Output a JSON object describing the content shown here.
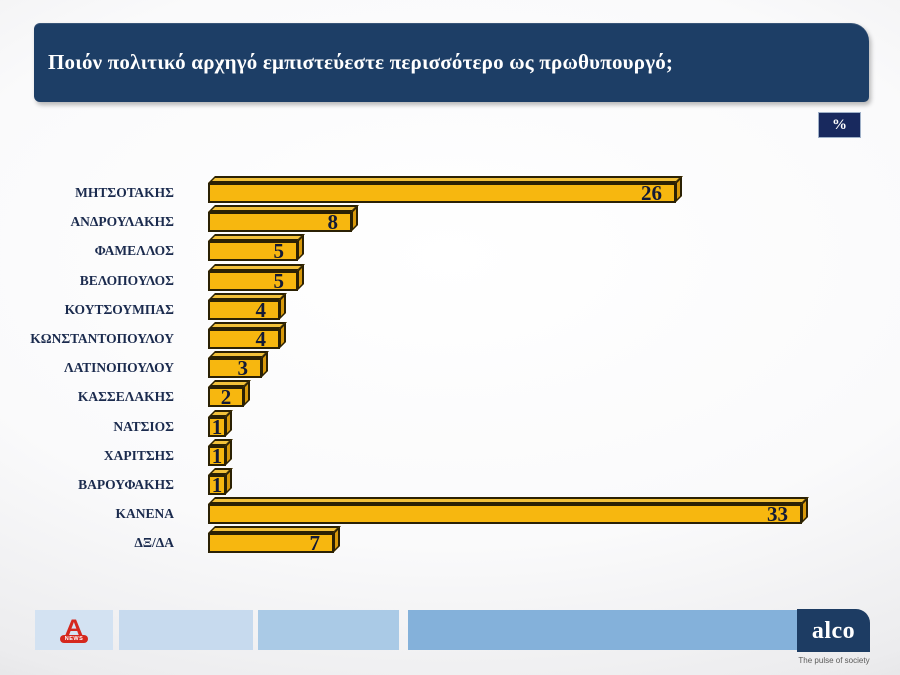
{
  "title": "Ποιόν πολιτικό αρχηγό εμπιστεύεστε περισσότερο ως πρωθυπουργό;",
  "unit_badge": "%",
  "chart_data": {
    "type": "bar",
    "orientation": "horizontal",
    "title": "Ποιόν πολιτικό αρχηγό εμπιστεύεστε περισσότερο ως πρωθυπουργό;",
    "unit": "%",
    "categories": [
      "ΜΗΤΣΟΤΑΚΗΣ",
      "ΑΝΔΡΟΥΛΑΚΗΣ",
      "ΦΑΜΕΛΛΟΣ",
      "ΒΕΛΟΠΟΥΛΟΣ",
      "ΚΟΥΤΣΟΥΜΠΑΣ",
      "ΚΩΝΣΤΑΝΤΟΠΟΥΛΟΥ",
      "ΛΑΤΙΝΟΠΟΥΛΟΥ",
      "ΚΑΣΣΕΛΑΚΗΣ",
      "ΝΑΤΣΙΟΣ",
      "ΧΑΡΙΤΣΗΣ",
      "ΒΑΡΟΥΦΑΚΗΣ",
      "ΚΑΝΕΝΑ",
      "ΔΞ/ΔΑ"
    ],
    "values": [
      26,
      8,
      5,
      5,
      4,
      4,
      3,
      2,
      1,
      1,
      1,
      33,
      7
    ],
    "xlim": [
      0,
      35
    ],
    "grid": false,
    "legend": false,
    "value_labels": "inside-end",
    "bar_style": "3d-gold"
  },
  "footer": {
    "alpha": {
      "letter": "A",
      "news": "NEWS"
    },
    "alco": {
      "logo": "alco",
      "tagline": "The pulse of society"
    }
  },
  "colors": {
    "title_bg": "#1D3E66",
    "title_text": "#FFFFFF",
    "badge_bg": "#18295E",
    "bar_front": "#F7B70F",
    "bar_top": "#F2C13A",
    "bar_side": "#D8990B",
    "bar_border": "#2B2104",
    "value_text": "#131A36",
    "label_text": "#1B2B4E",
    "alco_bg": "#1D3C63",
    "alpha_red": "#D5281E",
    "footer_boxes": [
      "#D3E2F2",
      "#C7DAEE",
      "#AACAE6",
      "#84B1DA"
    ]
  }
}
